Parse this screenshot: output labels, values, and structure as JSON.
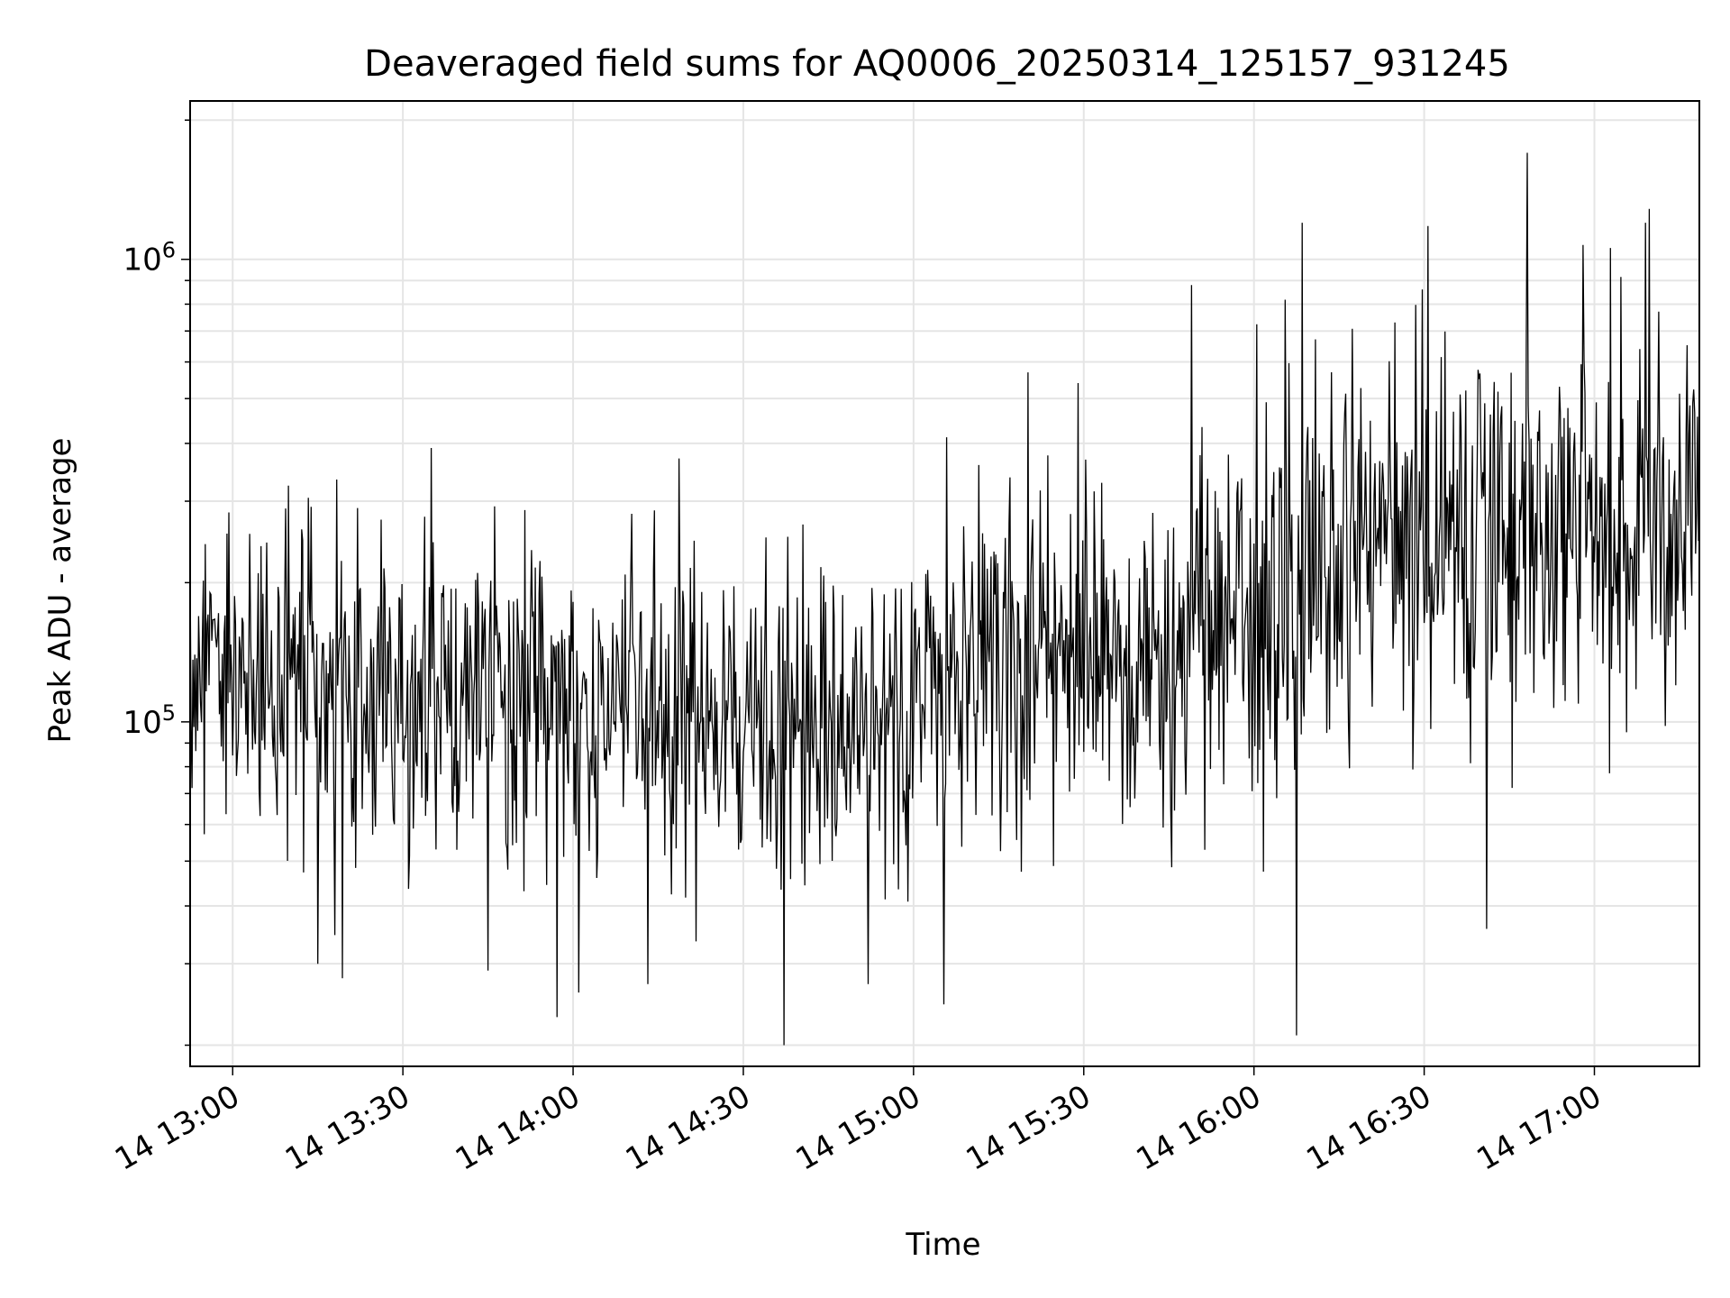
{
  "chart_data": {
    "type": "line",
    "title": "Deaveraged field sums for AQ0006_20250314_125157_931245",
    "xlabel": "Time",
    "ylabel": "Peak ADU - average",
    "y_scale": "log",
    "x_range": [
      "2025-03-14 12:52:30",
      "2025-03-14 17:18:30"
    ],
    "ylim": [
      18000,
      2200000
    ],
    "grid": true,
    "line_color": "#000000",
    "grid_color": "#e5e5e5",
    "x_ticks": [
      {
        "t": "2025-03-14 13:00",
        "label": "14 13:00"
      },
      {
        "t": "2025-03-14 13:30",
        "label": "14 13:30"
      },
      {
        "t": "2025-03-14 14:00",
        "label": "14 14:00"
      },
      {
        "t": "2025-03-14 14:30",
        "label": "14 14:30"
      },
      {
        "t": "2025-03-14 15:00",
        "label": "14 15:00"
      },
      {
        "t": "2025-03-14 15:30",
        "label": "14 15:30"
      },
      {
        "t": "2025-03-14 16:00",
        "label": "14 16:00"
      },
      {
        "t": "2025-03-14 16:30",
        "label": "14 16:30"
      },
      {
        "t": "2025-03-14 17:00",
        "label": "14 17:00"
      }
    ],
    "y_major_ticks": [
      {
        "value": 100000,
        "base": "10",
        "exp": "5"
      },
      {
        "value": 1000000,
        "base": "10",
        "exp": "6"
      }
    ],
    "y_minor_ticks": [
      20000,
      30000,
      40000,
      50000,
      60000,
      70000,
      80000,
      90000,
      200000,
      300000,
      400000,
      500000,
      600000,
      700000,
      800000,
      900000,
      2000000
    ],
    "series": [
      {
        "sample_interval_s": 10,
        "points": [
          [
            "2025-03-14 12:52:30",
            120000
          ],
          [
            "2025-03-14 12:56:00",
            150000
          ],
          [
            "2025-03-14 13:00:00",
            110000
          ],
          [
            "2025-03-14 13:10:00",
            120000
          ],
          [
            "2025-03-14 13:20:00",
            115000
          ],
          [
            "2025-03-14 13:30:00",
            110000
          ],
          [
            "2025-03-14 13:40:00",
            115000
          ],
          [
            "2025-03-14 13:50:00",
            110000
          ],
          [
            "2025-03-14 14:00:00",
            110000
          ],
          [
            "2025-03-14 14:10:00",
            105000
          ],
          [
            "2025-03-14 14:20:00",
            100000
          ],
          [
            "2025-03-14 14:30:00",
            95000
          ],
          [
            "2025-03-14 14:40:00",
            95000
          ],
          [
            "2025-03-14 14:50:00",
            100000
          ],
          [
            "2025-03-14 15:00:00",
            110000
          ],
          [
            "2025-03-14 15:10:00",
            125000
          ],
          [
            "2025-03-14 15:20:00",
            140000
          ],
          [
            "2025-03-14 15:30:00",
            135000
          ],
          [
            "2025-03-14 15:40:00",
            125000
          ],
          [
            "2025-03-14 15:50:00",
            150000
          ],
          [
            "2025-03-14 16:00:00",
            160000
          ],
          [
            "2025-03-14 16:10:00",
            210000
          ],
          [
            "2025-03-14 16:20:00",
            250000
          ],
          [
            "2025-03-14 16:30:00",
            260000
          ],
          [
            "2025-03-14 16:40:00",
            255000
          ],
          [
            "2025-03-14 16:50:00",
            250000
          ],
          [
            "2025-03-14 17:00:00",
            270000
          ],
          [
            "2025-03-14 17:10:00",
            285000
          ],
          [
            "2025-03-14 17:18:30",
            290000
          ]
        ],
        "noise_sigma_log10": 0.17,
        "spikes": [
          [
            "2025-03-14 13:03:00",
            255000
          ],
          [
            "2025-03-14 13:13:20",
            305000
          ],
          [
            "2025-03-14 13:15:00",
            30000
          ],
          [
            "2025-03-14 13:45:00",
            29000
          ],
          [
            "2025-03-14 13:57:10",
            23000
          ],
          [
            "2025-03-14 14:01:00",
            26000
          ],
          [
            "2025-03-14 14:37:10",
            20000
          ],
          [
            "2025-03-14 15:05:20",
            24500
          ],
          [
            "2025-03-14 15:29:00",
            540000
          ],
          [
            "2025-03-14 15:49:00",
            880000
          ],
          [
            "2025-03-14 16:07:30",
            21000
          ],
          [
            "2025-03-14 16:08:30",
            1200000
          ],
          [
            "2025-03-14 16:30:40",
            1180000
          ],
          [
            "2025-03-14 16:48:10",
            1700000
          ],
          [
            "2025-03-14 17:09:00",
            1200000
          ],
          [
            "2025-03-14 16:45:30",
            72000
          ],
          [
            "2025-03-14 17:12:30",
            98000
          ]
        ]
      }
    ]
  }
}
